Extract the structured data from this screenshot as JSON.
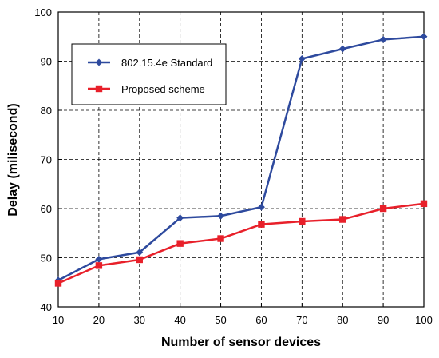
{
  "chart_data": {
    "type": "line",
    "xlabel": "Number of sensor devices",
    "ylabel": "Delay (milisecond)",
    "x": [
      10,
      20,
      30,
      40,
      50,
      60,
      70,
      80,
      90,
      100
    ],
    "xlim": [
      10,
      100
    ],
    "ylim": [
      40,
      100
    ],
    "xticks": [
      "10",
      "20",
      "30",
      "40",
      "50",
      "60",
      "70",
      "80",
      "90",
      "100"
    ],
    "yticks": [
      "40",
      "50",
      "60",
      "70",
      "80",
      "90",
      "100"
    ],
    "grid": true,
    "legend_position": "upper-left",
    "series": [
      {
        "name": "802.15.4e Standard",
        "color": "#2e4a9e",
        "marker": "diamond",
        "values": [
          45.4,
          49.7,
          51.1,
          58.1,
          58.5,
          60.3,
          90.5,
          92.5,
          94.4,
          95.0
        ]
      },
      {
        "name": "Proposed scheme",
        "color": "#e8202a",
        "marker": "square",
        "values": [
          44.8,
          48.4,
          49.6,
          52.9,
          53.9,
          56.8,
          57.4,
          57.8,
          60.0,
          61.0
        ]
      }
    ]
  }
}
